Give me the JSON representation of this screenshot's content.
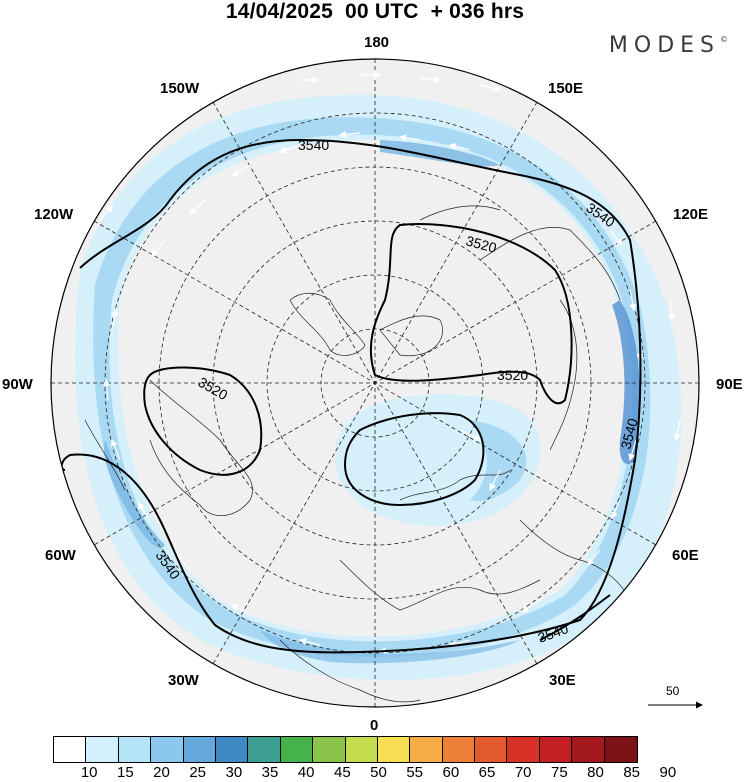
{
  "title": "14/04/2025  00 UTC  + 036 hrs",
  "brand": "MODES",
  "brand_mark": "©",
  "longitude_labels": [
    "180",
    "150E",
    "120E",
    "90E",
    "60E",
    "30E",
    "0",
    "30W",
    "60W",
    "90W",
    "120W",
    "150W"
  ],
  "contour_labels": [
    "3540",
    "3540",
    "3520",
    "3520",
    "3520",
    "3540",
    "3540",
    "3540"
  ],
  "vector_reference": "50",
  "colorbar": {
    "ticks": [
      "10",
      "15",
      "20",
      "25",
      "30",
      "35",
      "40",
      "45",
      "50",
      "55",
      "60",
      "65",
      "70",
      "75",
      "80",
      "85",
      "90"
    ],
    "colors": [
      "#ffffff",
      "#d3f1fc",
      "#b5e3f8",
      "#8cc8ee",
      "#64a8dc",
      "#3f88c4",
      "#3c9f92",
      "#45b24c",
      "#89c34a",
      "#c3dc4d",
      "#f5de52",
      "#f5ae45",
      "#ee7f37",
      "#e35a2f",
      "#d73128",
      "#c41f24",
      "#a3191c",
      "#7c1216"
    ]
  },
  "colors": {
    "land": "#f0f0f0",
    "wind_light": "#d6f0fb",
    "wind_mid": "#a9d9f3",
    "wind_strong": "#7db9e4",
    "wind_core": "#5a95d3"
  }
}
